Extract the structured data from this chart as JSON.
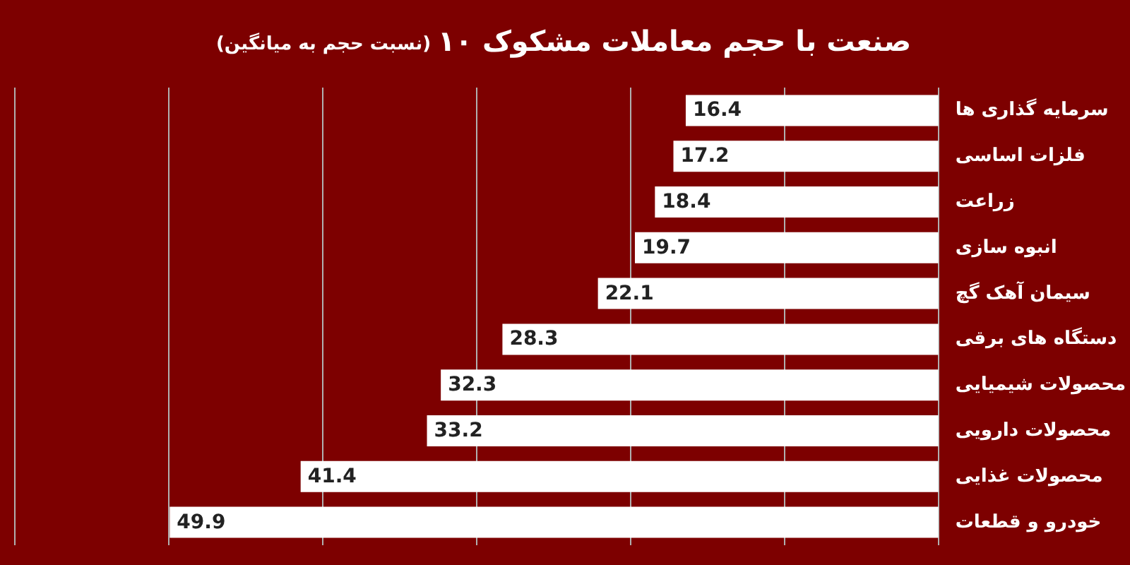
{
  "chart_data": {
    "type": "bar",
    "orientation": "horizontal",
    "title": "۱۰ صنعت با حجم معاملات مشکوک",
    "subtitle": "(نسبت حجم به میانگین)",
    "categories": [
      "سرمایه گذاری ها",
      "فلزات اساسی",
      "زراعت",
      "انبوه سازی",
      "سیمان آهک گچ",
      "دستگاه های برقی",
      "محصولات شیمیایی",
      "محصولات دارویی",
      "محصولات غذایی",
      "خودرو و قطعات"
    ],
    "values": [
      16.4,
      17.2,
      18.4,
      19.7,
      22.1,
      28.3,
      32.3,
      33.2,
      41.4,
      49.9
    ],
    "color": "#ffffff",
    "xlim": [
      60,
      0
    ],
    "xticks": [
      {
        "value": 0,
        "label": null
      },
      {
        "value": 10,
        "label": null
      },
      {
        "value": 20,
        "label": null
      },
      {
        "value": 30,
        "label": null
      },
      {
        "value": 40,
        "label": null
      },
      {
        "value": 50,
        "label": null
      },
      {
        "value": 60,
        "label": null
      }
    ],
    "tick_labels": "y",
    "grid": "x",
    "data_labels": true
  }
}
